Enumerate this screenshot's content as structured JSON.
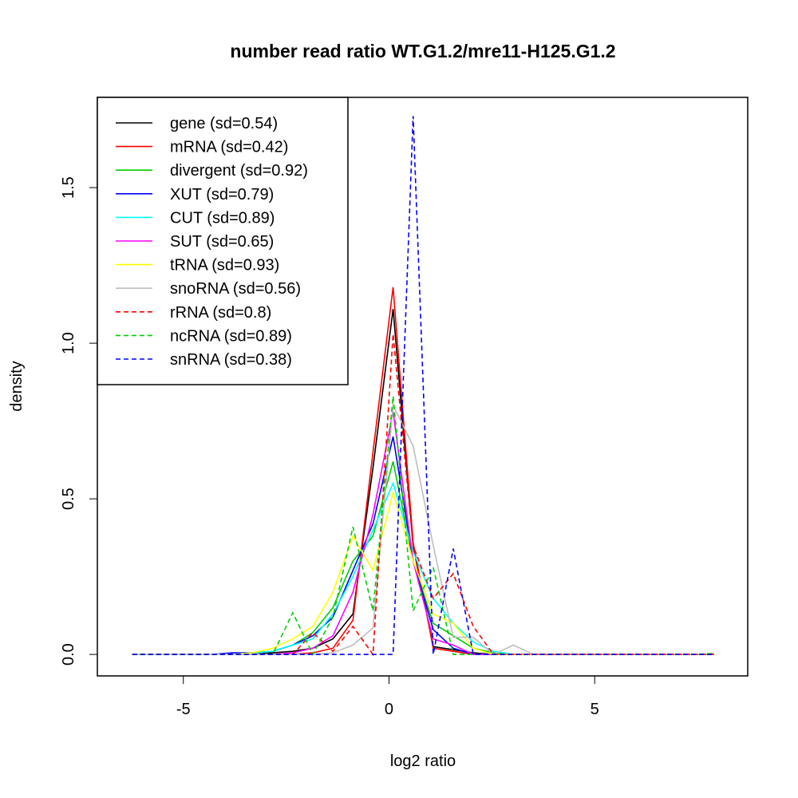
{
  "chart_data": {
    "type": "line",
    "title": "number read ratio WT.G1.2/mre11-H125.G1.2",
    "xlabel": "log2 ratio",
    "ylabel": "density",
    "xlim": [
      -7.09,
      8.72
    ],
    "ylim": [
      -0.069,
      1.79
    ],
    "xticks": [
      -5,
      0,
      5
    ],
    "xtick_labels": [
      "-5",
      "0",
      "5"
    ],
    "yticks": [
      0,
      0.5,
      1,
      1.5
    ],
    "ytick_labels": [
      "0.0",
      "0.5",
      "1.0",
      "1.5"
    ],
    "grid": false,
    "legend_position": "top-left",
    "x_start": -6.24,
    "x_step": 0.4876,
    "series": [
      {
        "name": "gene (sd=0.54)",
        "color": "#000000",
        "dashed": false,
        "values": [
          0,
          0,
          0,
          0,
          0,
          0,
          0,
          0.005,
          0.01,
          0.02,
          0.05,
          0.13,
          0.6,
          1.11,
          0.35,
          0.025,
          0.015,
          0.005,
          0,
          0,
          0,
          0,
          0,
          0,
          0,
          0,
          0,
          0,
          0,
          0
        ]
      },
      {
        "name": "mRNA (sd=0.42)",
        "color": "#ff0000",
        "dashed": false,
        "values": [
          0,
          0,
          0,
          0,
          0,
          0,
          0,
          0,
          0,
          0.005,
          0.02,
          0.11,
          0.65,
          1.18,
          0.36,
          0.02,
          0.01,
          0,
          0,
          0,
          0,
          0,
          0,
          0,
          0,
          0,
          0,
          0,
          0,
          0
        ]
      },
      {
        "name": "divergent (sd=0.92)",
        "color": "#00cd00",
        "dashed": false,
        "values": [
          0,
          0,
          0,
          0,
          0,
          0,
          0.005,
          0.01,
          0.03,
          0.07,
          0.15,
          0.3,
          0.38,
          0.62,
          0.3,
          0.1,
          0.06,
          0.02,
          0.005,
          0,
          0,
          0,
          0,
          0,
          0,
          0,
          0,
          0,
          0,
          0.002
        ]
      },
      {
        "name": "XUT (sd=0.79)",
        "color": "#0000ff",
        "dashed": false,
        "values": [
          0,
          0,
          0,
          0,
          0,
          0.005,
          0.005,
          0.01,
          0.03,
          0.06,
          0.12,
          0.27,
          0.42,
          0.7,
          0.3,
          0.08,
          0.02,
          0,
          0,
          0,
          0,
          0,
          0,
          0,
          0,
          0,
          0,
          0,
          0,
          0
        ]
      },
      {
        "name": "CUT (sd=0.89)",
        "color": "#00ffff",
        "dashed": false,
        "values": [
          0,
          0,
          0,
          0,
          0,
          0,
          0.005,
          0.01,
          0.03,
          0.05,
          0.13,
          0.25,
          0.4,
          0.55,
          0.33,
          0.18,
          0.1,
          0.04,
          0.01,
          0,
          0,
          0,
          0,
          0,
          0,
          0,
          0,
          0,
          0,
          0
        ]
      },
      {
        "name": "SUT (sd=0.65)",
        "color": "#ff00ff",
        "dashed": false,
        "values": [
          0,
          0,
          0,
          0,
          0,
          0,
          0,
          0,
          0.005,
          0.02,
          0.06,
          0.2,
          0.45,
          0.78,
          0.3,
          0.05,
          0.03,
          0,
          0,
          0,
          0,
          0,
          0,
          0,
          0,
          0,
          0,
          0,
          0,
          0
        ]
      },
      {
        "name": "tRNA (sd=0.93)",
        "color": "#ffff00",
        "dashed": false,
        "values": [
          0,
          0,
          0,
          0,
          0,
          0,
          0.005,
          0.02,
          0.05,
          0.09,
          0.2,
          0.38,
          0.27,
          0.52,
          0.3,
          0.13,
          0.1,
          0.02,
          0,
          0,
          0,
          0,
          0,
          0,
          0,
          0,
          0,
          0,
          0,
          0
        ]
      },
      {
        "name": "snoRNA (sd=0.56)",
        "color": "#bebebe",
        "dashed": false,
        "values": [
          0,
          0,
          0,
          0,
          0,
          0,
          0,
          0,
          0,
          0,
          0.005,
          0.03,
          0.085,
          0.8,
          0.67,
          0.35,
          0.055,
          0.055,
          0,
          0.03,
          0,
          0,
          0,
          0,
          0,
          0,
          0,
          0,
          0,
          0
        ]
      },
      {
        "name": "rRNA (sd=0.8)",
        "color": "#ff0000",
        "dashed": true,
        "values": [
          0,
          0,
          0,
          0,
          0,
          0,
          0,
          0,
          0,
          0.07,
          0.01,
          0.09,
          0,
          1.03,
          0.35,
          0.18,
          0.26,
          0.09,
          0,
          0,
          0,
          0,
          0,
          0,
          0,
          0,
          0,
          0,
          0,
          0
        ]
      },
      {
        "name": "ncRNA (sd=0.89)",
        "color": "#00cd00",
        "dashed": true,
        "values": [
          0,
          0,
          0,
          0,
          0,
          0,
          0,
          0,
          0.134,
          0,
          0.12,
          0.41,
          0.14,
          0.83,
          0.14,
          0.28,
          0,
          0,
          0,
          0,
          0,
          0,
          0,
          0,
          0,
          0,
          0,
          0,
          0,
          0.003
        ]
      },
      {
        "name": "snRNA (sd=0.38)",
        "color": "#0000ff",
        "dashed": true,
        "values": [
          0,
          0,
          0,
          0,
          0,
          0,
          0,
          0,
          0,
          0,
          0,
          0,
          0,
          0,
          1.73,
          0,
          0.34,
          0,
          0,
          0,
          0,
          0,
          0,
          0,
          0,
          0,
          0,
          0,
          0,
          0
        ]
      }
    ]
  }
}
